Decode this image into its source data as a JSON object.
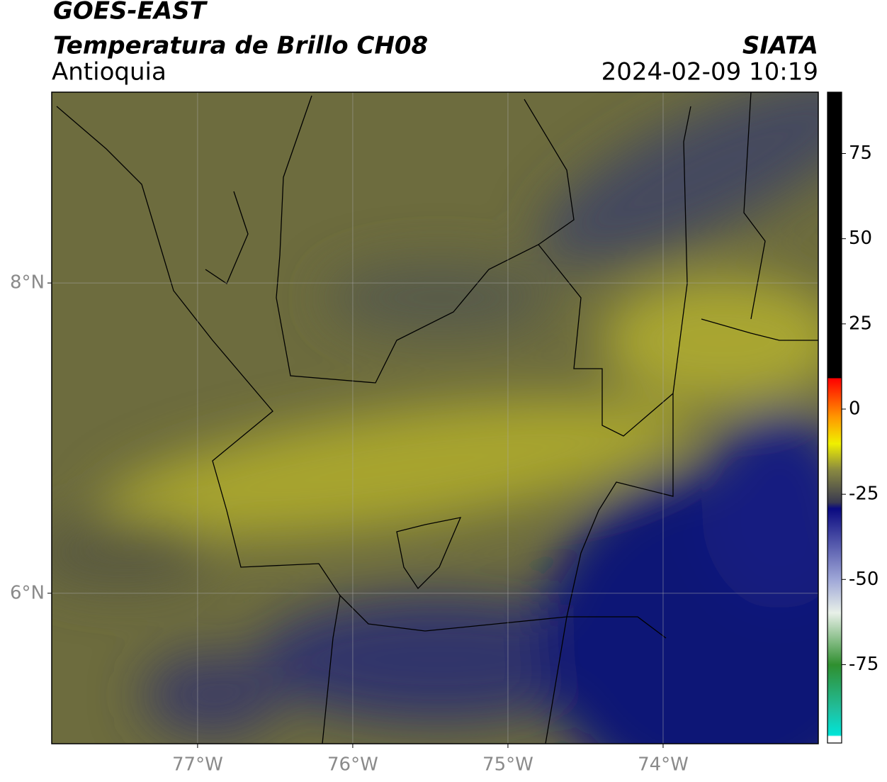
{
  "header": {
    "title": "GOES-EAST",
    "subtitle": "Temperatura de Brillo CH08",
    "region": "Antioquia",
    "source": "SIATA",
    "datetime": "2024-02-09 10:19"
  },
  "map": {
    "xlim": [
      -77.94,
      -73.0
    ],
    "ylim": [
      5.03,
      9.23
    ],
    "xticks": [
      {
        "value": -77,
        "label": "77°W"
      },
      {
        "value": -76,
        "label": "76°W"
      },
      {
        "value": -75,
        "label": "75°W"
      },
      {
        "value": -74,
        "label": "74°W"
      }
    ],
    "yticks": [
      {
        "value": 8,
        "label": "8°N"
      },
      {
        "value": 6,
        "label": "6°N"
      }
    ],
    "grid": true
  },
  "colorbar": {
    "clim": [
      -98,
      93
    ],
    "ticks": [
      75,
      50,
      25,
      0,
      -25,
      -50,
      -75
    ]
  }
}
